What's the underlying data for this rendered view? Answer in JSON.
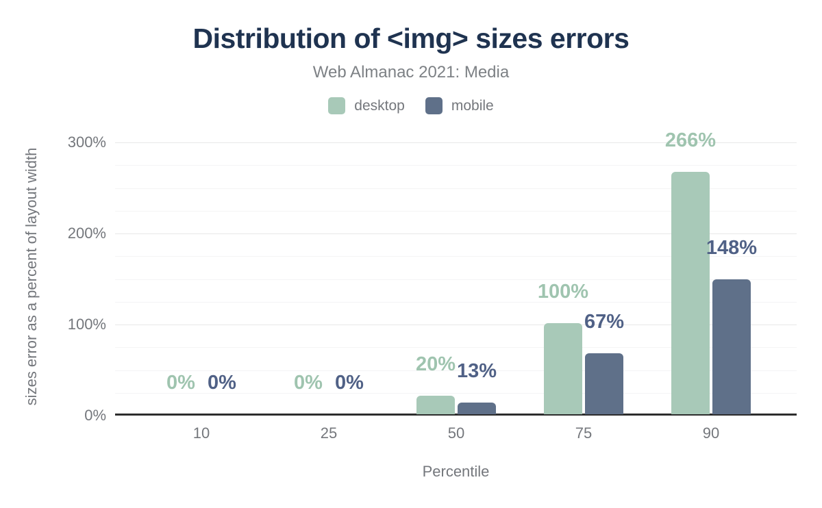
{
  "page": {
    "background": "#ffffff"
  },
  "palette": {
    "title": "#1f3350",
    "subtitle": "#7d8185",
    "axis_text": "#74777c",
    "grid_major": "#e7e8e8",
    "grid_minor": "#f4f4f5",
    "axis_line": "#2d2d2d"
  },
  "chart_data": {
    "type": "bar",
    "title": "Distribution of <img> sizes errors",
    "subtitle": "Web Almanac 2021: Media",
    "xlabel": "Percentile",
    "ylabel": "sizes error as a percent of layout width",
    "categories": [
      "10",
      "25",
      "50",
      "75",
      "90"
    ],
    "series": [
      {
        "name": "desktop",
        "color": "#a8c9b8",
        "label_color": "#9fc4af",
        "values": [
          0,
          0,
          20,
          100,
          266
        ],
        "labels": [
          "0%",
          "0%",
          "20%",
          "100%",
          "266%"
        ]
      },
      {
        "name": "mobile",
        "color": "#5f7089",
        "label_color": "#506186",
        "values": [
          0,
          0,
          13,
          67,
          148
        ],
        "labels": [
          "0%",
          "0%",
          "13%",
          "67%",
          "148%"
        ]
      }
    ],
    "ylim": [
      0,
      300
    ],
    "yticks": [
      {
        "value": 0,
        "label": "0%"
      },
      {
        "value": 100,
        "label": "100%"
      },
      {
        "value": 200,
        "label": "200%"
      },
      {
        "value": 300,
        "label": "300%"
      }
    ],
    "minor_tick_step": 25,
    "grid": "on",
    "legend_position": "top"
  }
}
